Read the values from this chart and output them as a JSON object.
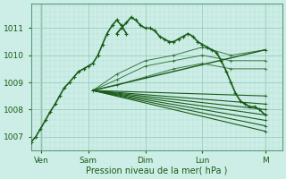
{
  "bg_color": "#cceee6",
  "plot_bg_color": "#cceee6",
  "line_color": "#1a5c1a",
  "grid_major_color": "#99ccbb",
  "grid_minor_color": "#b8ddd4",
  "text_color": "#1a5c1a",
  "xlabel": "Pression niveau de la mer( hPa )",
  "ylim": [
    1006.5,
    1011.9
  ],
  "xlim": [
    0,
    4.4
  ],
  "yticks": [
    1007,
    1008,
    1009,
    1010,
    1011
  ],
  "xtick_labels": [
    "Ven",
    "Sam",
    "Dim",
    "Lun",
    "M"
  ],
  "xtick_positions": [
    0.18,
    1.0,
    2.0,
    3.0,
    4.1
  ],
  "observed_x": [
    0.0,
    0.083,
    0.167,
    0.25,
    0.33,
    0.42,
    0.5,
    0.58,
    0.67,
    0.75,
    0.83,
    0.92,
    1.0,
    1.08,
    1.17,
    1.25,
    1.33,
    1.42,
    1.5,
    1.58,
    1.67
  ],
  "observed_y": [
    1006.8,
    1007.0,
    1007.3,
    1007.6,
    1007.9,
    1008.2,
    1008.5,
    1008.8,
    1009.0,
    1009.2,
    1009.4,
    1009.5,
    1009.6,
    1009.7,
    1010.0,
    1010.4,
    1010.8,
    1011.1,
    1011.3,
    1011.1,
    1010.8
  ],
  "fan_origin_x": 1.08,
  "fan_origin_y": 1008.7,
  "fan_endpoints": [
    [
      4.1,
      1007.2
    ],
    [
      4.1,
      1007.4
    ],
    [
      4.1,
      1007.6
    ],
    [
      4.1,
      1007.8
    ],
    [
      4.1,
      1008.0
    ],
    [
      4.1,
      1008.2
    ],
    [
      4.1,
      1008.5
    ],
    [
      4.1,
      1010.2
    ]
  ],
  "second_peak_x": [
    1.5,
    1.58,
    1.67,
    1.75,
    1.83,
    1.92,
    2.0,
    2.08,
    2.17,
    2.25,
    2.33,
    2.42,
    2.5,
    2.58,
    2.67,
    2.75,
    2.83,
    2.92,
    3.0,
    3.08,
    3.17,
    3.25,
    3.33,
    3.42,
    3.5,
    3.58,
    3.67,
    3.75,
    3.83,
    3.92,
    4.0,
    4.1
  ],
  "second_peak_y": [
    1010.8,
    1011.0,
    1011.2,
    1011.4,
    1011.3,
    1011.1,
    1011.0,
    1011.0,
    1010.9,
    1010.7,
    1010.6,
    1010.5,
    1010.5,
    1010.6,
    1010.7,
    1010.8,
    1010.7,
    1010.5,
    1010.4,
    1010.3,
    1010.2,
    1010.1,
    1009.8,
    1009.4,
    1009.0,
    1008.6,
    1008.3,
    1008.2,
    1008.1,
    1008.1,
    1008.0,
    1007.8
  ]
}
